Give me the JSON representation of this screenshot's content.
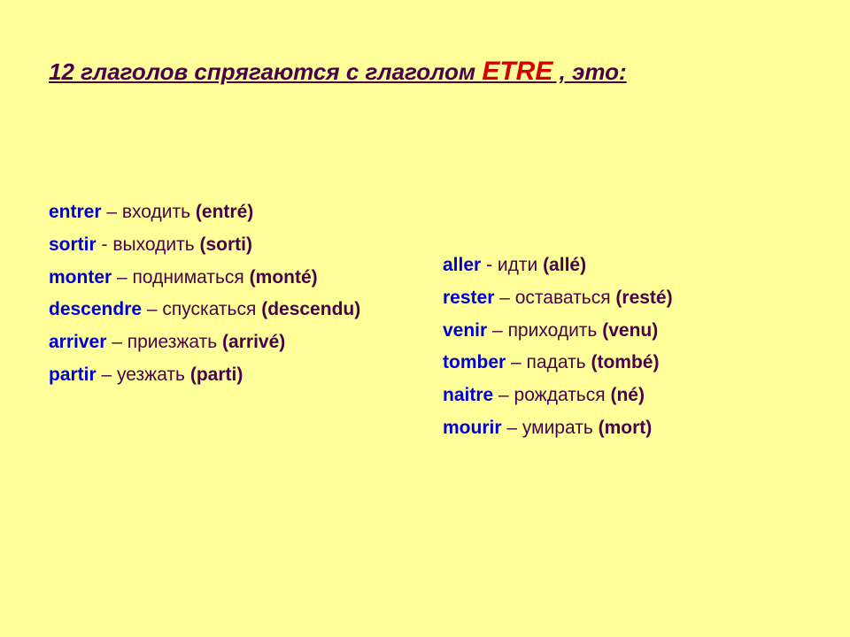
{
  "colors": {
    "slide_bg": "#feff99",
    "title_color": "#4a004a",
    "key_color": "#d40000",
    "infinitive_color": "#0000d4",
    "sep_color": "#4a004a",
    "gloss_color": "#4a004a",
    "pp_color": "#4a004a"
  },
  "typography": {
    "title_fontsize": 26,
    "key_fontsize": 30,
    "body_fontsize": 21,
    "line_height": 1.75,
    "font_family": "Verdana, Geneva, sans-serif"
  },
  "title": {
    "prefix": "12 глаголов спрягаются с глаголом ",
    "key": "ETRE",
    "suffix": " , это:"
  },
  "columns": {
    "left": [
      {
        "infinitive": "entrer",
        "sep": " – ",
        "gloss": "входить",
        "pp": "(entré)"
      },
      {
        "infinitive": "sortir",
        "sep": "  -  ",
        "gloss": "выходить",
        "pp": "(sorti)"
      },
      {
        "infinitive": "monter",
        "sep": " – ",
        "gloss": "подниматься",
        "pp": "(monté)"
      },
      {
        "infinitive": "descendre",
        "sep": " – ",
        "gloss": "спускаться",
        "pp": "(descendu)"
      },
      {
        "infinitive": "arriver",
        "sep": " – ",
        "gloss": "приезжать",
        "pp": "(arrivé)"
      },
      {
        "infinitive": "partir",
        "sep": " – ",
        "gloss": "уезжать",
        "pp": "(parti)"
      }
    ],
    "right": [
      {
        "infinitive": "aller",
        "sep": "  -  ",
        "gloss": "идти",
        "pp": "(allé)"
      },
      {
        "infinitive": "rester",
        "sep": " – ",
        "gloss": "оставаться",
        "pp": "(resté)"
      },
      {
        "infinitive": "venir",
        "sep": " – ",
        "gloss": "приходить",
        "pp": "(venu)"
      },
      {
        "infinitive": "tomber",
        "sep": " – ",
        "gloss": "падать",
        "pp": "(tombé)"
      },
      {
        "infinitive": "naitre",
        "sep": " – ",
        "gloss": "рождаться",
        "pp": "(né)"
      },
      {
        "infinitive": "mourir",
        "sep": " – ",
        "gloss": "умирать",
        "pp": "(mort)"
      }
    ]
  }
}
